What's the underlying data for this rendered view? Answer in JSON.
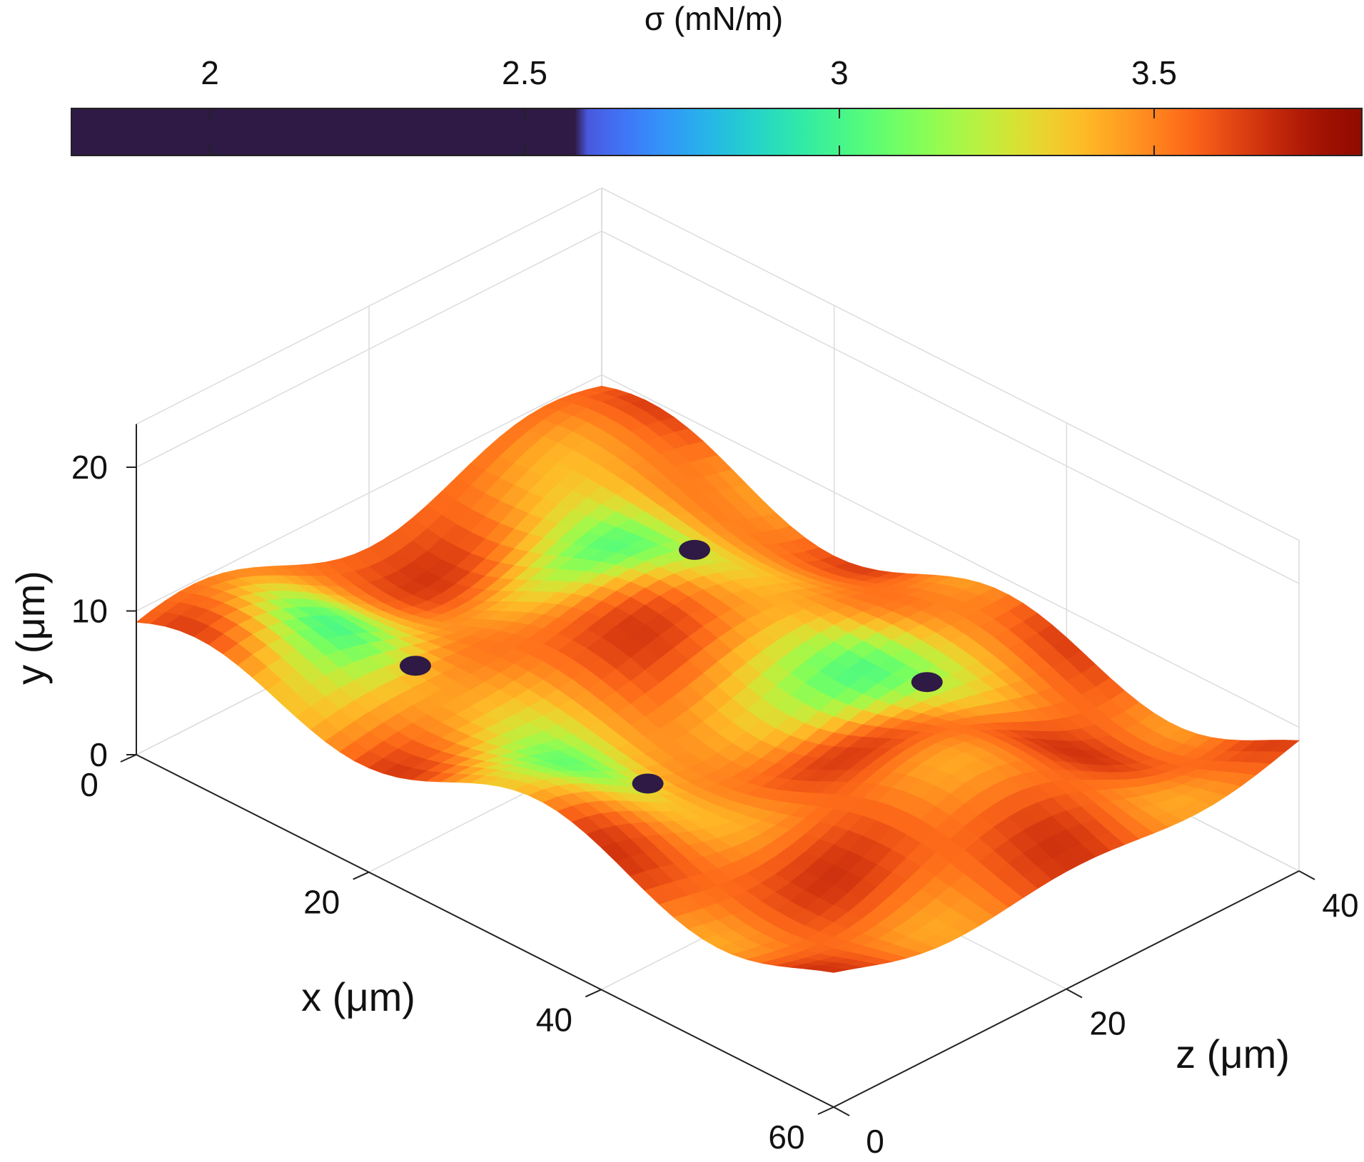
{
  "chart_data": {
    "type": "surface3d",
    "colorbar": {
      "label": "σ (mN/m)",
      "ticks": [
        "2",
        "2.5",
        "3",
        "3.5"
      ],
      "tick_values": [
        2,
        2.5,
        3,
        3.5
      ],
      "range": [
        1.78,
        3.83
      ],
      "colormap": "turbo",
      "clip_below": 2.6,
      "clip_color": "#2e1a44",
      "location": "top"
    },
    "axes": {
      "x": {
        "label": "x (μm)",
        "ticks": [
          "0",
          "20",
          "40",
          "60"
        ],
        "tick_values": [
          0,
          20,
          40,
          60
        ],
        "range": [
          0,
          60
        ]
      },
      "y": {
        "label": "y (μm)",
        "ticks": [
          "0",
          "10",
          "20"
        ],
        "tick_values": [
          0,
          10,
          20
        ],
        "range": [
          0,
          20
        ]
      },
      "z": {
        "label": "z (μm)",
        "ticks": [
          "0",
          "20",
          "40"
        ],
        "tick_values": [
          0,
          20,
          40
        ],
        "range": [
          0,
          40
        ]
      },
      "grid": true
    },
    "surface": {
      "base_sigma": 3.55,
      "dominant_color": "#ef6a1c",
      "low_tension_spots": [
        {
          "x": 10,
          "z": 8,
          "sigma": 3.0
        },
        {
          "x": 30,
          "z": 8,
          "sigma": 3.0
        },
        {
          "x": 14,
          "z": 28,
          "sigma": 3.0
        },
        {
          "x": 34,
          "z": 28,
          "sigma": 3.0
        }
      ],
      "min_sigma": 1.8
    }
  }
}
